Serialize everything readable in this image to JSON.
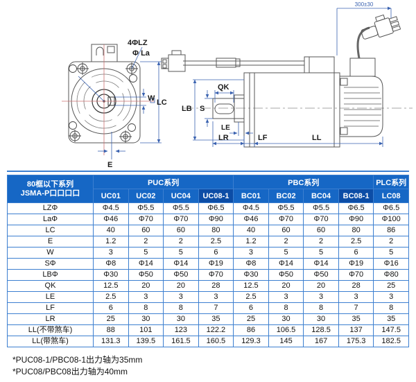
{
  "drawings": {
    "front": {
      "labels": {
        "bolt_holes": "4ΦLZ",
        "bolt_circle": "Φ La",
        "key_width": "W",
        "frame_size": "LC",
        "offset": "E"
      }
    },
    "side": {
      "labels": {
        "key_length": "QK",
        "shaft_dia": "S",
        "pilot": "LB",
        "le": "LE",
        "lr": "LR",
        "lf": "LF",
        "ll": "LL",
        "cable_length": "300±30"
      }
    }
  },
  "table": {
    "corner": {
      "line1": "80框以下系列",
      "line2": "JSMA-P口口口口"
    },
    "groups": [
      {
        "label": "PUC系列",
        "span": 4
      },
      {
        "label": "PBC系列",
        "span": 4
      },
      {
        "label": "PLC系列",
        "span": 1
      }
    ],
    "columns": [
      "UC01",
      "UC02",
      "UC04",
      "UC08-1",
      "BC01",
      "BC02",
      "BC04",
      "BC08-1",
      "LC08"
    ],
    "highlight_columns": [
      3,
      7
    ],
    "rows": [
      {
        "label": "LZΦ",
        "values": [
          "Φ4.5",
          "Φ5.5",
          "Φ5.5",
          "Φ6.5",
          "Φ4.5",
          "Φ5.5",
          "Φ5.5",
          "Φ6.5",
          "Φ6.5"
        ]
      },
      {
        "label": "LaΦ",
        "values": [
          "Φ46",
          "Φ70",
          "Φ70",
          "Φ90",
          "Φ46",
          "Φ70",
          "Φ70",
          "Φ90",
          "Φ100"
        ]
      },
      {
        "label": "LC",
        "values": [
          "40",
          "60",
          "60",
          "80",
          "40",
          "60",
          "60",
          "80",
          "86"
        ]
      },
      {
        "label": "E",
        "values": [
          "1.2",
          "2",
          "2",
          "2.5",
          "1.2",
          "2",
          "2",
          "2.5",
          "2"
        ]
      },
      {
        "label": "W",
        "values": [
          "3",
          "5",
          "5",
          "6",
          "3",
          "5",
          "5",
          "6",
          "5"
        ]
      },
      {
        "label": "SΦ",
        "values": [
          "Φ8",
          "Φ14",
          "Φ14",
          "Φ19",
          "Φ8",
          "Φ14",
          "Φ14",
          "Φ19",
          "Φ16"
        ]
      },
      {
        "label": "LBΦ",
        "values": [
          "Φ30",
          "Φ50",
          "Φ50",
          "Φ70",
          "Φ30",
          "Φ50",
          "Φ50",
          "Φ70",
          "Φ80"
        ]
      },
      {
        "label": "QK",
        "values": [
          "12.5",
          "20",
          "20",
          "28",
          "12.5",
          "20",
          "20",
          "28",
          "25"
        ]
      },
      {
        "label": "LE",
        "values": [
          "2.5",
          "3",
          "3",
          "3",
          "2.5",
          "3",
          "3",
          "3",
          "3"
        ]
      },
      {
        "label": "LF",
        "values": [
          "6",
          "8",
          "8",
          "7",
          "6",
          "8",
          "8",
          "7",
          "8"
        ]
      },
      {
        "label": "LR",
        "values": [
          "25",
          "30",
          "30",
          "35",
          "25",
          "30",
          "30",
          "35",
          "35"
        ]
      },
      {
        "label": "LL(不带煞车)",
        "values": [
          "88",
          "101",
          "123",
          "122.2",
          "86",
          "106.5",
          "128.5",
          "137",
          "147.5"
        ]
      },
      {
        "label": "LL(带煞车)",
        "values": [
          "131.3",
          "139.5",
          "161.5",
          "160.5",
          "129.3",
          "145",
          "167",
          "175.3",
          "182.5"
        ]
      }
    ]
  },
  "notes": [
    "*PUC08-1/PBC08-1出力轴为35mm",
    "*PUC08/PBC08出力轴为40mm"
  ],
  "colors": {
    "header_bg": "#1667c5",
    "header_highlight_bg": "#0c4da6",
    "border": "#3c7fd0",
    "accent_dim": "#3a62b0"
  }
}
